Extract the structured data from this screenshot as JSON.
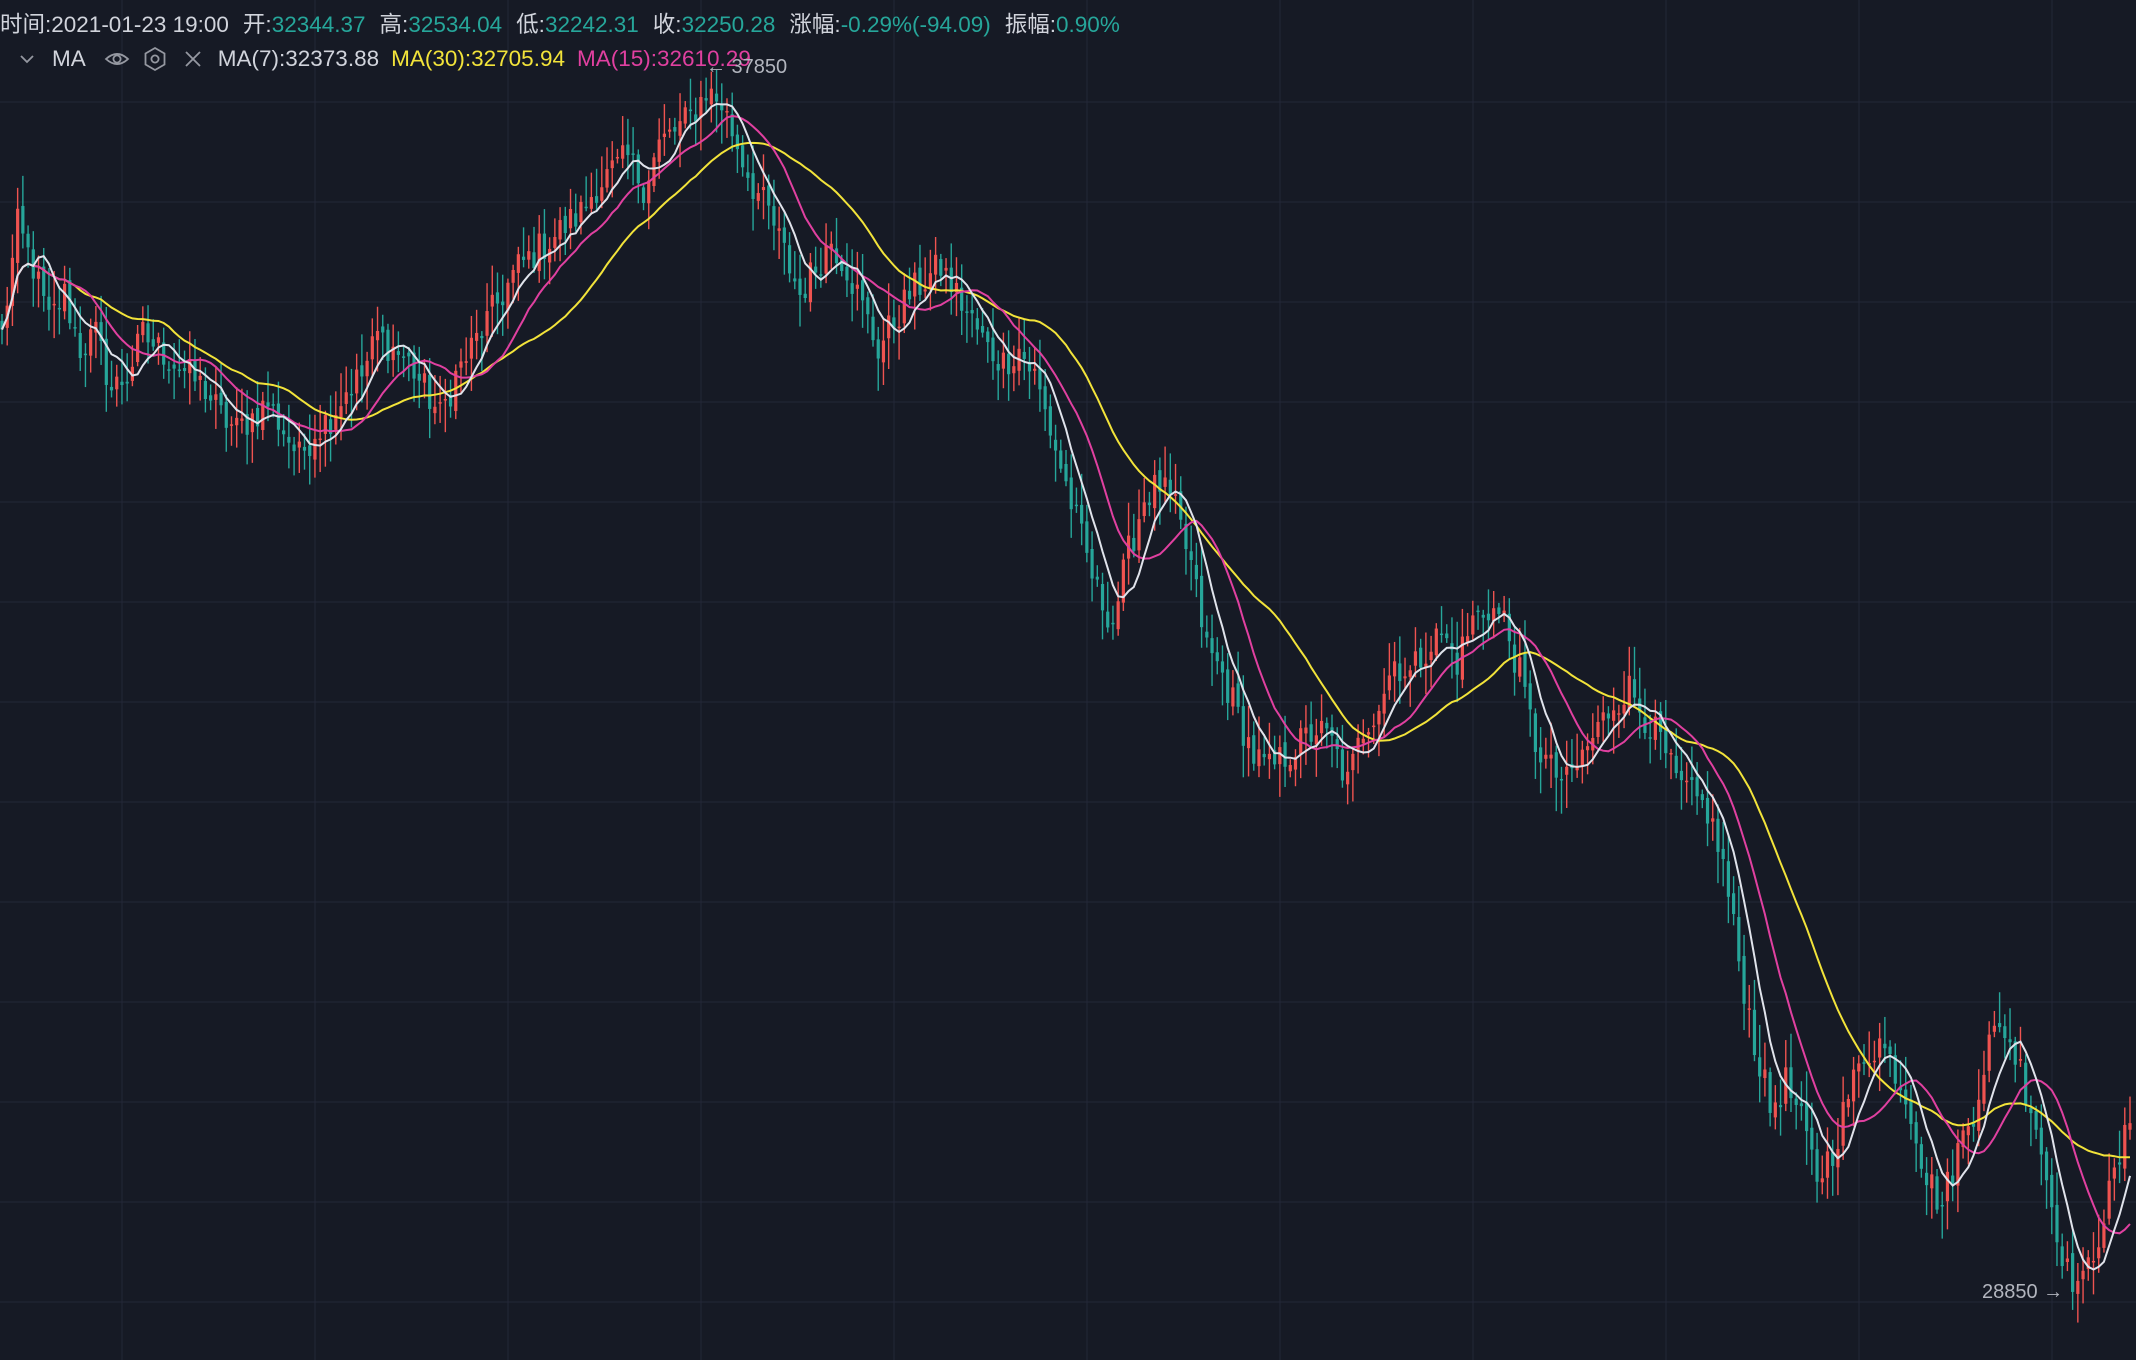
{
  "header": {
    "time_label": "时间:",
    "time_value": "2021-01-23 19:00",
    "open_label": "开:",
    "open_value": "32344.37",
    "high_label": "高:",
    "high_value": "32534.04",
    "low_label": "低:",
    "low_value": "32242.31",
    "close_label": "收:",
    "close_value": "32250.28",
    "change_label": "涨幅:",
    "change_value": "-0.29%(-94.09)",
    "amplitude_label": "振幅:",
    "amplitude_value": "0.90%"
  },
  "indicator": {
    "name": "MA",
    "toggle_icon": "chevron-down-icon",
    "visibility_icon": "eye-icon",
    "settings_icon": "gear-icon",
    "remove_icon": "close-icon",
    "ma7_text": "MA(7):32373.88",
    "ma30_text": "MA(30):32705.94",
    "ma15_text": "MA(15):32610.29"
  },
  "annotations": {
    "high_marker": "← 37850",
    "low_marker": "28850 →"
  },
  "colors": {
    "background": "#161a25",
    "grid": "#232838",
    "up": "#ef5350",
    "down": "#26a69a",
    "ma7": "#e0e3eb",
    "ma15": "#e040a0",
    "ma30": "#f2e33a",
    "value_green": "#26a69a"
  },
  "chart_data": {
    "type": "candlestick",
    "series": [
      {
        "name": "MA(7)"
      },
      {
        "name": "MA(15)"
      },
      {
        "name": "MA(30)"
      }
    ],
    "marked_high": 37850,
    "marked_low": 28850,
    "closes_approx": [
      35900,
      36700,
      36400,
      36000,
      36200,
      35800,
      35900,
      35500,
      35600,
      35900,
      35800,
      35700,
      35600,
      35500,
      35300,
      35200,
      35300,
      35400,
      35200,
      35000,
      35200,
      35300,
      35500,
      35600,
      35900,
      35800,
      35700,
      35500,
      35300,
      35600,
      35800,
      36000,
      36200,
      36400,
      36500,
      36600,
      36700,
      36800,
      37000,
      37100,
      37200,
      37000,
      37300,
      37400,
      37500,
      37700,
      37600,
      37300,
      37000,
      36800,
      36500,
      36200,
      36400,
      36600,
      36400,
      36100,
      35800,
      36000,
      36200,
      36300,
      36400,
      36200,
      36000,
      35800,
      35700,
      35800,
      35600,
      35200,
      34800,
      34400,
      34000,
      33800,
      34300,
      34700,
      34800,
      34600,
      34200,
      33600,
      33400,
      33100,
      32800,
      32700,
      32800,
      32900,
      33000,
      32900,
      32600,
      33000,
      33200,
      33500,
      33400,
      33600,
      33700,
      33500,
      33800,
      33900,
      33800,
      33400,
      32900,
      32700,
      32600,
      32800,
      33000,
      33200,
      33300,
      33100,
      32900,
      32600,
      32500,
      32400,
      32000,
      31300,
      30700,
      30200,
      30400,
      30100,
      29700,
      29900,
      30300,
      30600,
      30700,
      30500,
      30200,
      29700,
      29500,
      29900,
      30200,
      30700,
      30800,
      30500,
      30100,
      29500,
      29000,
      28900,
      29300,
      29700,
      30100
    ]
  }
}
